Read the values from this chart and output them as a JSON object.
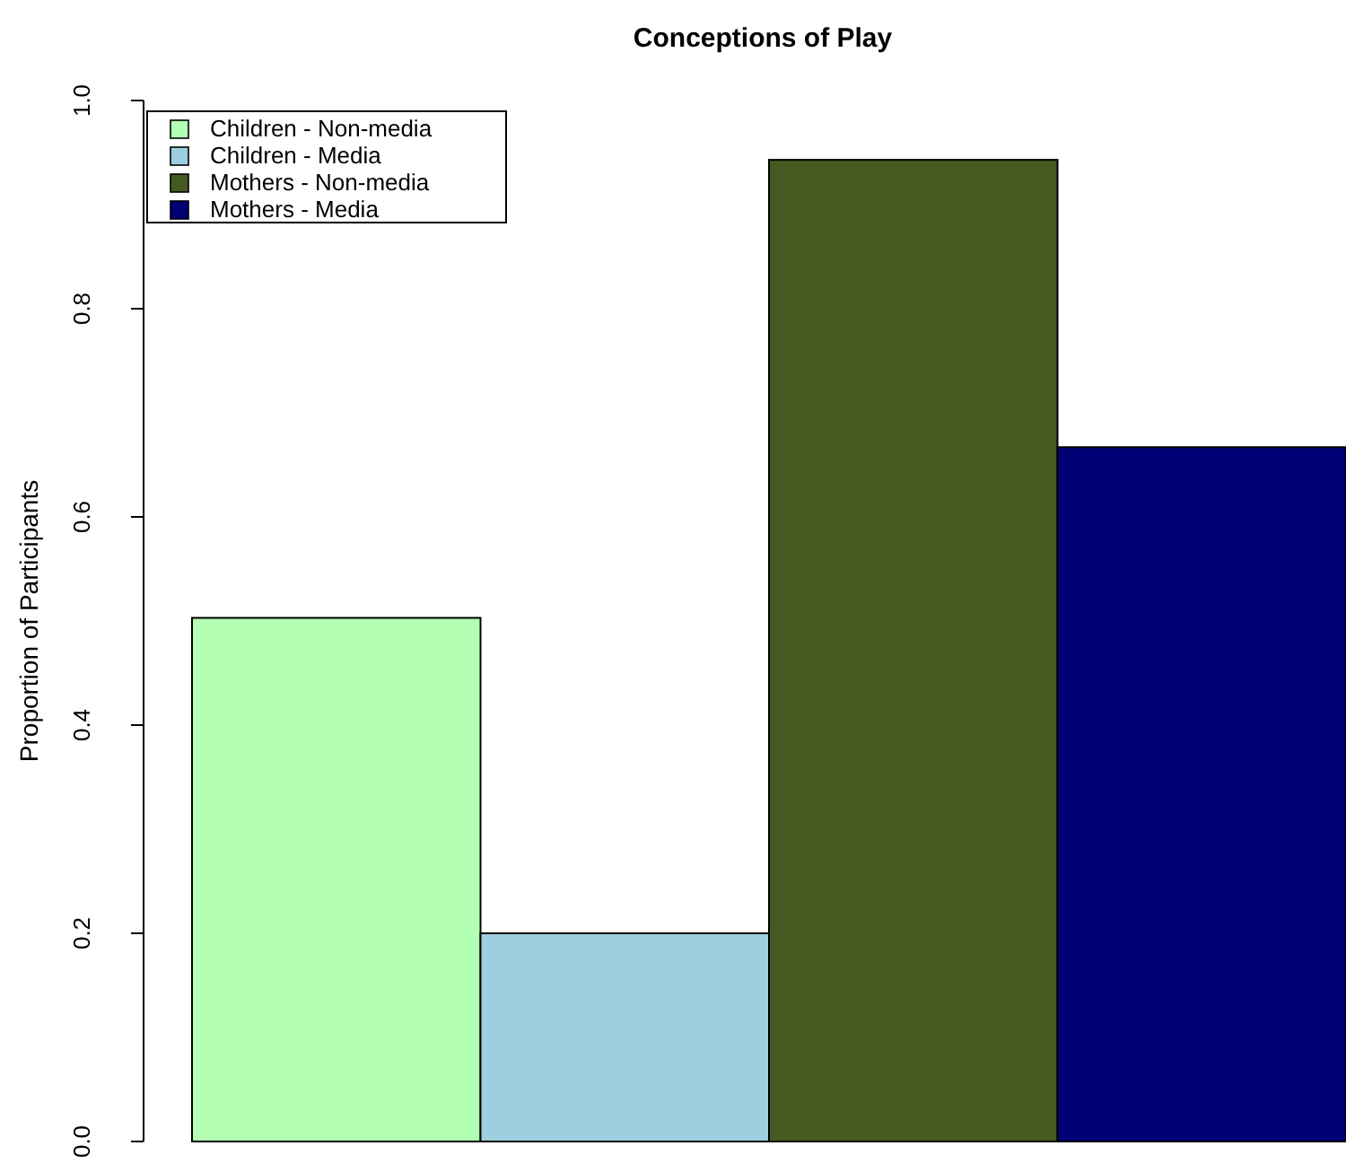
{
  "chart_data": {
    "type": "bar",
    "title": "Conceptions of Play",
    "ylabel": "Proportion of Participants",
    "categories": [
      null
    ],
    "series": [
      {
        "name": "Children - Non-media",
        "color": "#b3ffb3",
        "values": [
          0.503
        ]
      },
      {
        "name": "Children - Media",
        "color": "#9ecfe0",
        "values": [
          0.2
        ]
      },
      {
        "name": "Mothers - Non-media",
        "color": "#455a21",
        "values": [
          0.943
        ]
      },
      {
        "name": "Mothers - Media",
        "color": "#000075",
        "values": [
          0.667
        ]
      }
    ],
    "ylim": [
      0,
      1
    ],
    "yticks": [
      {
        "value": 0,
        "label": "0.0"
      },
      {
        "value": 0.2,
        "label": "0.2"
      },
      {
        "value": 0.4,
        "label": "0.4"
      },
      {
        "value": 0.6,
        "label": "0.6"
      },
      {
        "value": 0.8,
        "label": "0.8"
      },
      {
        "value": 1,
        "label": "1.0"
      }
    ],
    "legend": "top left",
    "grid": false
  }
}
